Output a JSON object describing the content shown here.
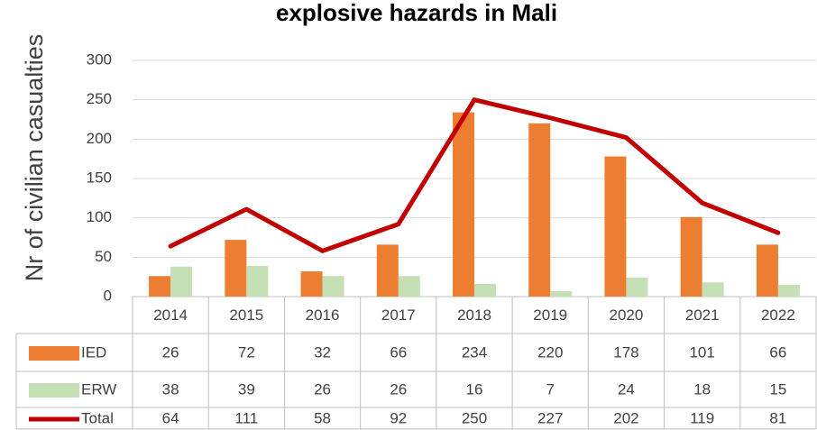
{
  "chart_data": {
    "type": "bar",
    "title": "explosive hazards in Mali",
    "y_label": "Nr of civilian casualties",
    "categories": [
      "2014",
      "2015",
      "2016",
      "2017",
      "2018",
      "2019",
      "2020",
      "2021",
      "2022"
    ],
    "series": [
      {
        "name": "IED",
        "color": "#ed7d31",
        "type": "bar",
        "values": [
          26,
          72,
          32,
          66,
          234,
          220,
          178,
          101,
          66
        ]
      },
      {
        "name": "ERW",
        "color": "#c5e0b4",
        "type": "bar",
        "values": [
          38,
          39,
          26,
          26,
          16,
          7,
          24,
          18,
          15
        ]
      },
      {
        "name": "Total",
        "color": "#c00000",
        "type": "line",
        "values": [
          64,
          111,
          58,
          92,
          250,
          227,
          202,
          119,
          81
        ]
      }
    ],
    "ylim": [
      0,
      300
    ],
    "yticks": [
      0,
      50,
      100,
      150,
      200,
      250,
      300
    ],
    "grid": true
  }
}
